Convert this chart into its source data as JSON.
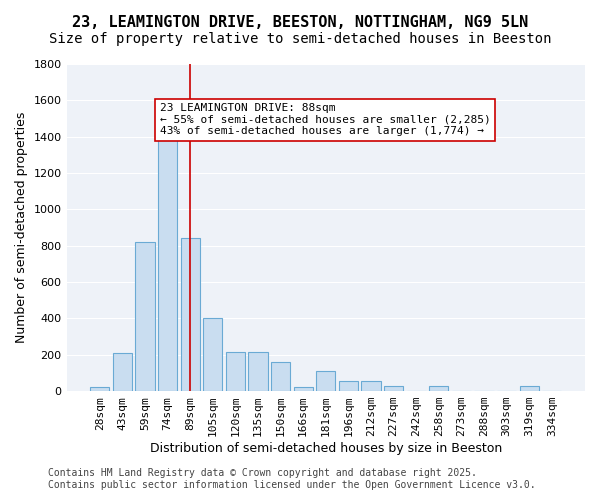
{
  "title_line1": "23, LEAMINGTON DRIVE, BEESTON, NOTTINGHAM, NG9 5LN",
  "title_line2": "Size of property relative to semi-detached houses in Beeston",
  "xlabel": "Distribution of semi-detached houses by size in Beeston",
  "ylabel": "Number of semi-detached properties",
  "categories": [
    "28sqm",
    "43sqm",
    "59sqm",
    "74sqm",
    "89sqm",
    "105sqm",
    "120sqm",
    "135sqm",
    "150sqm",
    "166sqm",
    "181sqm",
    "196sqm",
    "212sqm",
    "227sqm",
    "242sqm",
    "258sqm",
    "273sqm",
    "288sqm",
    "303sqm",
    "319sqm",
    "334sqm"
  ],
  "values": [
    25,
    210,
    820,
    1390,
    840,
    400,
    215,
    215,
    160,
    25,
    110,
    55,
    55,
    30,
    0,
    30,
    0,
    0,
    0,
    30,
    0
  ],
  "bar_color": "#c9ddf0",
  "bar_edge_color": "#6aaad4",
  "red_line_x": 4,
  "annotation_text": "23 LEAMINGTON DRIVE: 88sqm\n← 55% of semi-detached houses are smaller (2,285)\n43% of semi-detached houses are larger (1,774) →",
  "annotation_box_color": "#ffffff",
  "annotation_box_edge": "#cc0000",
  "ylim": [
    0,
    1800
  ],
  "yticks": [
    0,
    200,
    400,
    600,
    800,
    1000,
    1200,
    1400,
    1600,
    1800
  ],
  "background_color": "#eef2f8",
  "grid_color": "#ffffff",
  "footer_line1": "Contains HM Land Registry data © Crown copyright and database right 2025.",
  "footer_line2": "Contains public sector information licensed under the Open Government Licence v3.0.",
  "title_fontsize": 11,
  "subtitle_fontsize": 10,
  "axis_label_fontsize": 9,
  "tick_fontsize": 8,
  "annotation_fontsize": 8,
  "footer_fontsize": 7
}
